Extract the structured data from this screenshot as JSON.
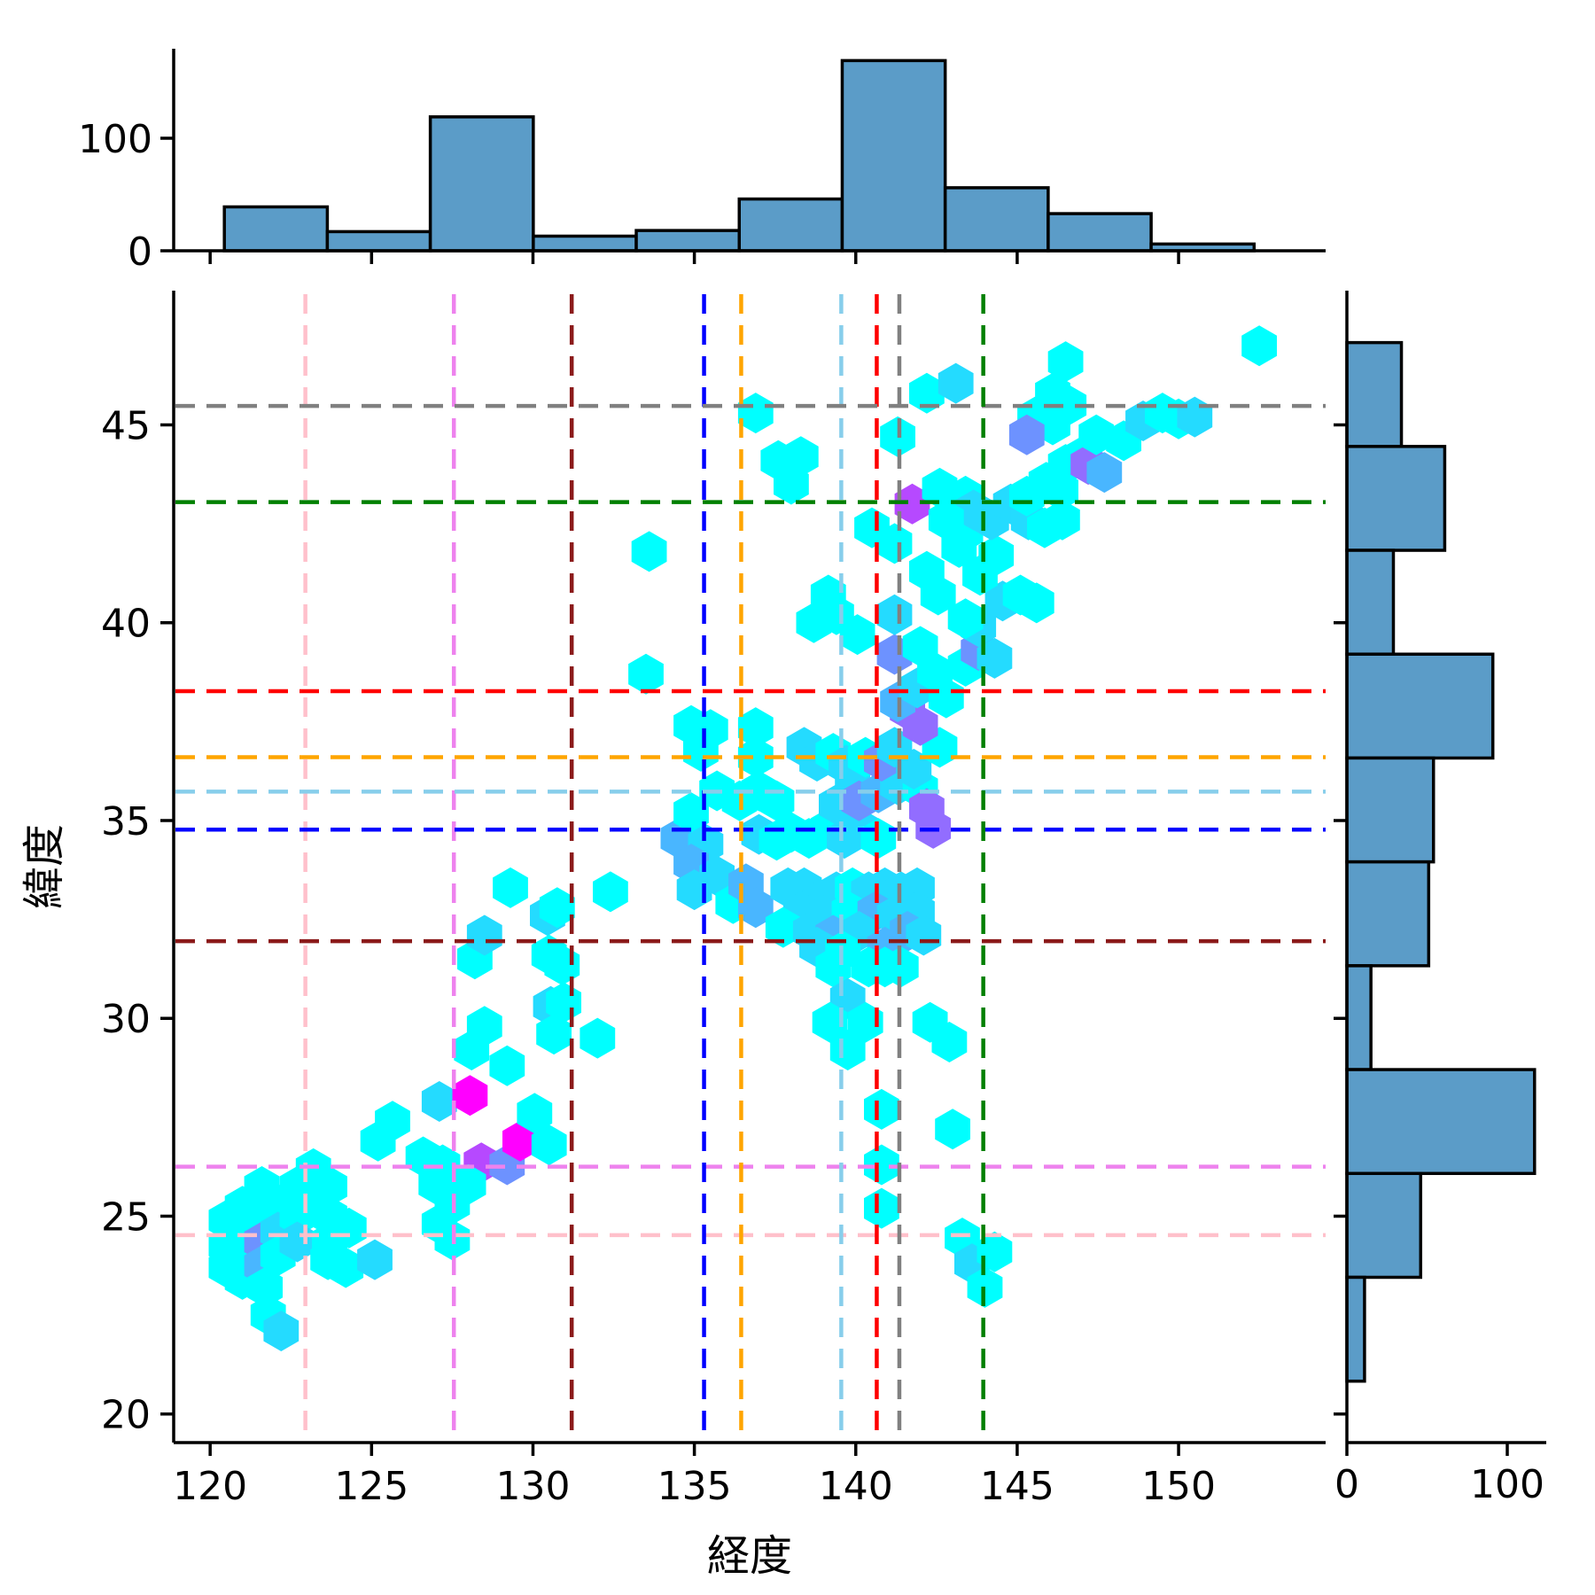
{
  "chart_data": {
    "type": "hexbin_jointplot",
    "title": "",
    "xlabel": "経度",
    "ylabel": "緯度",
    "x_ticks": [
      120,
      125,
      130,
      135,
      140,
      145,
      150
    ],
    "y_ticks": [
      20,
      25,
      30,
      35,
      40,
      45
    ],
    "x_range": [
      118.87,
      154.55
    ],
    "y_range": [
      19.3,
      48.4
    ],
    "marginal_tick_labels": [
      "0",
      "100"
    ],
    "legend": "none",
    "grid": false,
    "hex_colormap": "cool",
    "hex_max_count": 8,
    "top_histogram": {
      "orientation": "vertical",
      "bin_start_lon": 120.44,
      "bin_width_lon": 3.19,
      "counts": [
        39,
        17,
        119,
        13,
        18,
        46,
        169,
        56,
        33,
        6
      ],
      "axis_ticks": [
        0,
        100
      ]
    },
    "right_histogram": {
      "orientation": "horizontal",
      "bin_top_lat": 47.08,
      "bin_width_lat": 2.625,
      "counts_top_to_bottom": [
        34,
        61,
        29,
        91,
        54,
        51,
        15,
        117,
        46,
        11
      ],
      "axis_ticks": [
        0,
        100
      ]
    },
    "reference_lines": [
      {
        "name": "pink-crosshair",
        "color": "#FFC0CB",
        "lon": 122.95,
        "lat": 24.52
      },
      {
        "name": "violet-crosshair",
        "color": "#EE82EE",
        "lon": 127.55,
        "lat": 26.25
      },
      {
        "name": "darkred-crosshair",
        "color": "#8B1A1A",
        "lon": 131.2,
        "lat": 31.95
      },
      {
        "name": "blue-crosshair",
        "color": "#0000FF",
        "lon": 135.3,
        "lat": 34.77
      },
      {
        "name": "orange-crosshair",
        "color": "#FFA500",
        "lon": 136.45,
        "lat": 36.6
      },
      {
        "name": "skyblue-crosshair",
        "color": "#87CEEB",
        "lon": 139.55,
        "lat": 35.73
      },
      {
        "name": "red-crosshair",
        "color": "#FF0000",
        "lon": 140.65,
        "lat": 38.27
      },
      {
        "name": "gray-crosshair",
        "color": "#808080",
        "lon": 141.35,
        "lat": 45.48
      },
      {
        "name": "green-crosshair",
        "color": "#008000",
        "lon": 143.95,
        "lat": 43.05
      }
    ],
    "hexbin_points": [
      [
        120.5,
        24.9,
        1
      ],
      [
        120.5,
        24.25,
        1
      ],
      [
        120.5,
        23.7,
        1
      ],
      [
        121.0,
        25.25,
        1
      ],
      [
        121.0,
        24.6,
        1
      ],
      [
        121.0,
        24.0,
        1
      ],
      [
        121.0,
        23.4,
        1
      ],
      [
        121.6,
        25.75,
        1
      ],
      [
        121.6,
        25.0,
        1
      ],
      [
        121.6,
        24.35,
        4
      ],
      [
        121.6,
        23.75,
        3
      ],
      [
        121.7,
        23.2,
        1
      ],
      [
        121.8,
        22.5,
        1
      ],
      [
        122.2,
        22.1,
        2
      ],
      [
        122.1,
        25.3,
        1
      ],
      [
        122.1,
        24.6,
        2
      ],
      [
        122.1,
        24.0,
        1
      ],
      [
        122.7,
        25.75,
        1
      ],
      [
        122.7,
        25.0,
        1
      ],
      [
        122.7,
        24.35,
        2
      ],
      [
        123.2,
        26.2,
        1
      ],
      [
        123.2,
        25.3,
        1
      ],
      [
        123.7,
        25.75,
        1
      ],
      [
        123.7,
        25.0,
        1
      ],
      [
        123.7,
        24.35,
        1
      ],
      [
        123.65,
        23.9,
        1
      ],
      [
        124.2,
        23.7,
        1
      ],
      [
        124.3,
        24.7,
        1
      ],
      [
        125.1,
        23.9,
        2
      ],
      [
        125.65,
        27.4,
        1
      ],
      [
        125.2,
        26.9,
        1
      ],
      [
        126.6,
        26.5,
        1
      ],
      [
        127.2,
        26.3,
        1
      ],
      [
        128.4,
        26.35,
        6
      ],
      [
        129.2,
        26.3,
        4
      ],
      [
        129.6,
        26.9,
        8
      ],
      [
        130.05,
        27.6,
        1
      ],
      [
        130.5,
        26.8,
        1
      ],
      [
        127.0,
        25.8,
        1
      ],
      [
        128.0,
        25.8,
        1
      ],
      [
        127.5,
        25.3,
        1
      ],
      [
        127.1,
        24.8,
        1
      ],
      [
        127.5,
        24.4,
        1
      ],
      [
        127.1,
        27.9,
        2
      ],
      [
        128.05,
        28.05,
        8
      ],
      [
        128.2,
        31.5,
        1
      ],
      [
        128.5,
        32.1,
        2
      ],
      [
        129.3,
        33.3,
        1
      ],
      [
        130.45,
        32.6,
        2
      ],
      [
        130.75,
        32.8,
        1
      ],
      [
        130.5,
        31.6,
        1
      ],
      [
        130.9,
        31.35,
        1
      ],
      [
        130.55,
        30.3,
        2
      ],
      [
        130.95,
        30.4,
        1
      ],
      [
        130.65,
        29.6,
        1
      ],
      [
        128.5,
        29.8,
        1
      ],
      [
        128.1,
        29.2,
        1
      ],
      [
        129.2,
        28.8,
        1
      ],
      [
        132.0,
        29.5,
        1
      ],
      [
        132.4,
        33.2,
        1
      ],
      [
        134.5,
        34.55,
        3
      ],
      [
        134.9,
        35.2,
        1
      ],
      [
        135.35,
        34.4,
        2
      ],
      [
        134.9,
        33.9,
        3
      ],
      [
        135.7,
        33.6,
        2
      ],
      [
        135.0,
        33.25,
        2
      ],
      [
        136.2,
        32.9,
        1
      ],
      [
        136.6,
        33.4,
        3
      ],
      [
        136.9,
        32.8,
        3
      ],
      [
        137.9,
        33.3,
        2
      ],
      [
        138.4,
        33.3,
        2
      ],
      [
        138.9,
        33.0,
        2
      ],
      [
        139.4,
        33.2,
        2
      ],
      [
        139.9,
        33.3,
        1
      ],
      [
        140.4,
        33.2,
        2
      ],
      [
        140.9,
        33.3,
        2
      ],
      [
        141.4,
        33.2,
        2
      ],
      [
        141.9,
        33.3,
        2
      ],
      [
        138.3,
        32.7,
        2
      ],
      [
        139.0,
        32.6,
        2
      ],
      [
        139.8,
        32.7,
        1
      ],
      [
        140.6,
        32.7,
        3
      ],
      [
        141.2,
        32.6,
        2
      ],
      [
        141.9,
        32.7,
        2
      ],
      [
        137.75,
        32.3,
        1
      ],
      [
        138.6,
        32.2,
        2
      ],
      [
        139.3,
        32.1,
        3
      ],
      [
        140.1,
        32.2,
        2
      ],
      [
        141.6,
        32.2,
        3
      ],
      [
        142.1,
        32.1,
        2
      ],
      [
        138.8,
        31.8,
        2
      ],
      [
        139.6,
        31.7,
        1
      ],
      [
        140.9,
        31.8,
        3
      ],
      [
        139.3,
        31.3,
        1
      ],
      [
        140.4,
        31.3,
        1
      ],
      [
        140.9,
        31.3,
        1
      ],
      [
        141.4,
        31.3,
        1
      ],
      [
        139.75,
        30.5,
        2
      ],
      [
        139.2,
        29.9,
        1
      ],
      [
        139.75,
        29.2,
        1
      ],
      [
        140.3,
        29.9,
        1
      ],
      [
        142.3,
        29.9,
        1
      ],
      [
        142.9,
        29.4,
        1
      ],
      [
        140.8,
        27.7,
        1
      ],
      [
        140.8,
        26.3,
        1
      ],
      [
        140.8,
        25.2,
        1
      ],
      [
        143.0,
        27.2,
        1
      ],
      [
        143.3,
        24.45,
        1
      ],
      [
        143.6,
        23.8,
        2
      ],
      [
        144.3,
        24.1,
        1
      ],
      [
        144.0,
        23.2,
        1
      ],
      [
        135.7,
        35.75,
        1
      ],
      [
        136.4,
        35.5,
        1
      ],
      [
        137.0,
        35.75,
        1
      ],
      [
        137.55,
        35.5,
        1
      ],
      [
        134.9,
        37.4,
        1
      ],
      [
        135.5,
        37.3,
        1
      ],
      [
        136.9,
        37.35,
        1
      ],
      [
        135.2,
        36.75,
        1
      ],
      [
        136.9,
        36.6,
        1
      ],
      [
        137.0,
        34.65,
        2
      ],
      [
        137.55,
        34.5,
        1
      ],
      [
        138.0,
        34.7,
        1
      ],
      [
        138.55,
        34.55,
        1
      ],
      [
        139.15,
        34.8,
        1
      ],
      [
        139.65,
        34.55,
        2
      ],
      [
        140.15,
        34.8,
        2
      ],
      [
        140.7,
        34.55,
        1
      ],
      [
        139.4,
        35.4,
        2
      ],
      [
        139.9,
        35.9,
        2
      ],
      [
        140.1,
        35.5,
        4
      ],
      [
        140.7,
        35.7,
        3
      ],
      [
        141.3,
        35.9,
        2
      ],
      [
        142.0,
        35.8,
        1
      ],
      [
        142.2,
        35.3,
        5
      ],
      [
        142.4,
        34.8,
        5
      ],
      [
        138.4,
        36.85,
        2
      ],
      [
        138.8,
        36.5,
        2
      ],
      [
        139.3,
        36.7,
        1
      ],
      [
        139.7,
        36.4,
        2
      ],
      [
        140.3,
        36.6,
        1
      ],
      [
        140.8,
        36.5,
        4
      ],
      [
        141.2,
        36.85,
        2
      ],
      [
        141.8,
        36.3,
        2
      ],
      [
        142.6,
        36.85,
        1
      ],
      [
        141.6,
        37.8,
        5
      ],
      [
        142.0,
        37.4,
        5
      ],
      [
        141.3,
        38.0,
        3
      ],
      [
        141.9,
        38.35,
        2
      ],
      [
        142.45,
        38.75,
        1
      ],
      [
        142.8,
        38.1,
        1
      ],
      [
        133.5,
        38.7,
        1
      ],
      [
        141.2,
        39.2,
        4
      ],
      [
        142.0,
        39.4,
        1
      ],
      [
        141.2,
        40.2,
        2
      ],
      [
        143.4,
        38.9,
        1
      ],
      [
        143.8,
        39.3,
        4
      ],
      [
        144.3,
        39.1,
        2
      ],
      [
        143.8,
        39.9,
        2
      ],
      [
        143.4,
        40.1,
        1
      ],
      [
        144.55,
        40.55,
        2
      ],
      [
        145.1,
        40.7,
        1
      ],
      [
        145.6,
        40.5,
        1
      ],
      [
        139.15,
        40.7,
        1
      ],
      [
        139.4,
        40.2,
        1
      ],
      [
        138.7,
        40.0,
        1
      ],
      [
        140.05,
        39.7,
        1
      ],
      [
        142.2,
        41.3,
        1
      ],
      [
        142.55,
        40.7,
        1
      ],
      [
        143.85,
        41.2,
        1
      ],
      [
        144.35,
        41.7,
        1
      ],
      [
        143.2,
        41.9,
        1
      ],
      [
        143.4,
        42.3,
        1
      ],
      [
        141.2,
        42.0,
        1
      ],
      [
        140.5,
        42.4,
        1
      ],
      [
        133.6,
        41.8,
        1
      ],
      [
        143.4,
        43.2,
        1
      ],
      [
        143.65,
        42.85,
        2
      ],
      [
        144.2,
        42.6,
        2
      ],
      [
        144.8,
        43.0,
        2
      ],
      [
        145.35,
        42.6,
        2
      ],
      [
        145.85,
        42.4,
        1
      ],
      [
        146.4,
        42.6,
        1
      ],
      [
        145.3,
        43.2,
        1
      ],
      [
        145.9,
        43.55,
        1
      ],
      [
        146.35,
        43.35,
        1
      ],
      [
        141.75,
        43.0,
        6
      ],
      [
        142.6,
        43.4,
        1
      ],
      [
        142.8,
        42.6,
        1
      ],
      [
        136.9,
        45.3,
        1
      ],
      [
        137.6,
        44.1,
        1
      ],
      [
        138.3,
        44.2,
        1
      ],
      [
        138.0,
        43.5,
        1
      ],
      [
        141.3,
        44.7,
        1
      ],
      [
        142.2,
        45.8,
        1
      ],
      [
        143.1,
        46.05,
        2
      ],
      [
        146.5,
        46.6,
        1
      ],
      [
        146.1,
        45.8,
        1
      ],
      [
        145.55,
        45.2,
        1
      ],
      [
        146.1,
        45.0,
        1
      ],
      [
        146.6,
        45.5,
        1
      ],
      [
        145.3,
        44.75,
        4
      ],
      [
        146.5,
        44.0,
        1
      ],
      [
        147.0,
        44.2,
        1
      ],
      [
        147.2,
        44.0,
        5
      ],
      [
        147.7,
        43.8,
        3
      ],
      [
        147.45,
        44.75,
        1
      ],
      [
        148.3,
        44.6,
        1
      ],
      [
        148.9,
        45.1,
        2
      ],
      [
        149.5,
        45.3,
        1
      ],
      [
        150.0,
        45.15,
        1
      ],
      [
        150.5,
        45.2,
        2
      ],
      [
        152.5,
        47.0,
        1
      ]
    ]
  },
  "styles": {
    "background": "#FFFFFF",
    "bar_fill": "#5B9CC8",
    "bar_edge": "#000000",
    "spine_color": "#000000",
    "tick_label_color": "#000000"
  }
}
